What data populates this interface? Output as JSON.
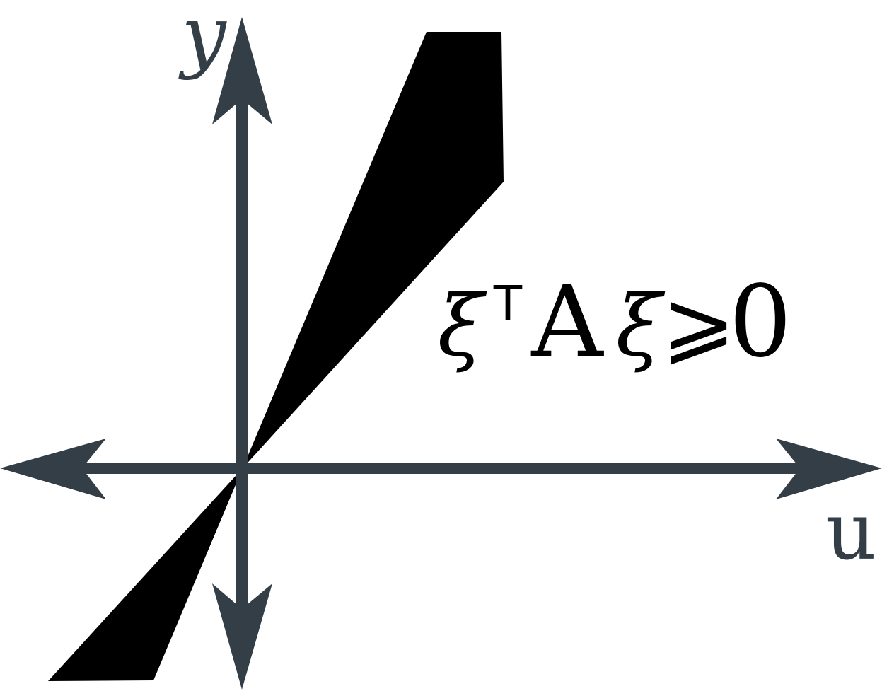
{
  "diagram": {
    "labels": {
      "y_axis": "y",
      "u_axis": "u",
      "inequality": {
        "xi": "ξ",
        "transpose": "T",
        "matrix": "A",
        "xi2": "ξ",
        "relation": "⩾",
        "rhs": "0"
      }
    },
    "colors": {
      "axis": "#333e47",
      "region": "#000000",
      "text": "#000000",
      "background": "#ffffff"
    }
  }
}
